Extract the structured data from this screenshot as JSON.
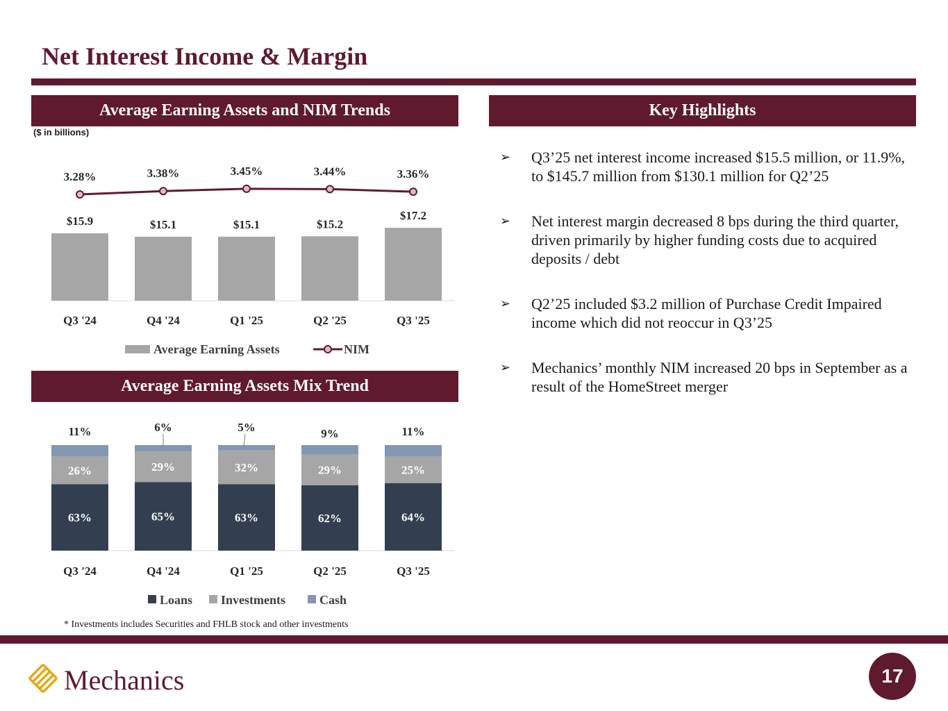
{
  "page": {
    "title": "Net Interest Income & Margin",
    "page_number": "17",
    "footnote": "* Investments includes Securities and FHLB stock and other investments",
    "logo_text": "Mechanics"
  },
  "sections": {
    "chart1_header": "Average Earning Assets and NIM Trends",
    "chart2_header": "Average Earning Assets Mix Trend",
    "highlights_header": "Key Highlights",
    "units": "($ in billions)"
  },
  "highlights": [
    "Q3’25 net interest income increased $15.5 million, or 11.9%, to $145.7 million from $130.1 million for Q2’25",
    "Net interest margin decreased 8 bps during the third quarter, driven primarily by higher funding costs due to acquired deposits / debt",
    "Q2’25 included $3.2 million of Purchase Credit Impaired income which did not reoccur in Q3’25",
    "Mechanics’ monthly NIM increased 20 bps in September as a result of the HomeStreet merger"
  ],
  "colors": {
    "brand": "#5f1a2e",
    "bar_gray": "#a6a6a6",
    "loans": "#333f50",
    "investments": "#a6a6a6",
    "cash": "#8497b0"
  },
  "chart_data": [
    {
      "type": "bar",
      "title": "Average Earning Assets and NIM Trends",
      "categories": [
        "Q3 '24",
        "Q4 '24",
        "Q1 '25",
        "Q2 '25",
        "Q3 '25"
      ],
      "series": [
        {
          "name": "Average Earning Assets",
          "type": "bar",
          "values": [
            15.9,
            15.1,
            15.1,
            15.2,
            17.2
          ],
          "labels": [
            "$15.9",
            "$15.1",
            "$15.1",
            "$15.2",
            "$17.2"
          ]
        },
        {
          "name": "NIM",
          "type": "line",
          "values": [
            3.28,
            3.38,
            3.45,
            3.44,
            3.36
          ],
          "labels": [
            "3.28%",
            "3.38%",
            "3.45%",
            "3.44%",
            "3.36%"
          ]
        }
      ],
      "legend": "bottom"
    },
    {
      "type": "bar",
      "stacked": true,
      "title": "Average Earning Assets Mix Trend",
      "categories": [
        "Q3 '24",
        "Q4 '24",
        "Q1 '25",
        "Q2 '25",
        "Q3 '25"
      ],
      "series": [
        {
          "name": "Loans",
          "values": [
            63,
            65,
            63,
            62,
            64
          ]
        },
        {
          "name": "Investments",
          "values": [
            26,
            29,
            32,
            29,
            25
          ]
        },
        {
          "name": "Cash",
          "values": [
            11,
            6,
            5,
            9,
            11
          ]
        }
      ],
      "ylim": [
        0,
        100
      ],
      "legend": "bottom"
    }
  ]
}
